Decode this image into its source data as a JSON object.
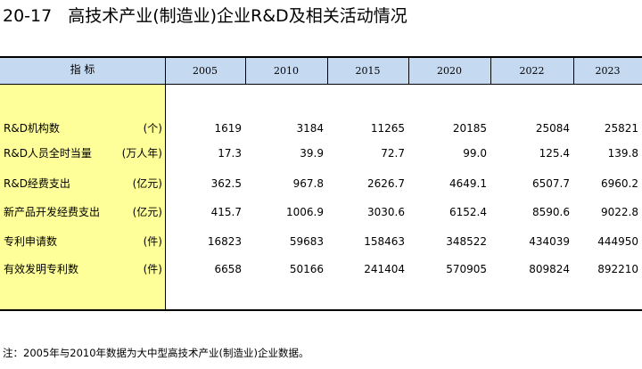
{
  "header": {
    "table_number": "20-17",
    "title": "高技术产业(制造业)企业R&D及相关活动情况"
  },
  "table": {
    "stub_header": "指    标",
    "years": [
      "2005",
      "2010",
      "2015",
      "2020",
      "2022",
      "2023"
    ],
    "rows": [
      {
        "label": "R&D机构数",
        "unit": "(个)",
        "values": [
          "1619",
          "3184",
          "11265",
          "20185",
          "25084",
          "25821"
        ]
      },
      {
        "label": "R&D人员全时当量",
        "unit": "(万人年)",
        "values": [
          "17.3",
          "39.9",
          "72.7",
          "99.0",
          "125.4",
          "139.8"
        ]
      },
      {
        "label": "R&D经费支出",
        "unit": "(亿元)",
        "values": [
          "362.5",
          "967.8",
          "2626.7",
          "4649.1",
          "6507.7",
          "6960.2"
        ]
      },
      {
        "label": "新产品开发经费支出",
        "unit": "(亿元)",
        "values": [
          "415.7",
          "1006.9",
          "3030.6",
          "6152.4",
          "8590.6",
          "9022.8"
        ]
      },
      {
        "label": "专利申请数",
        "unit": "(件)",
        "values": [
          "16823",
          "59683",
          "158463",
          "348522",
          "434039",
          "444950"
        ]
      },
      {
        "label": "有效发明专利数",
        "unit": "(件)",
        "values": [
          "6658",
          "50166",
          "241404",
          "570905",
          "809824",
          "892210"
        ]
      }
    ]
  },
  "footnote": "注：2005年与2010年数据为大中型高技术产业(制造业)企业数据。",
  "colors": {
    "header_fill": "#c5d9f1",
    "stub_fill": "#ffff99"
  }
}
